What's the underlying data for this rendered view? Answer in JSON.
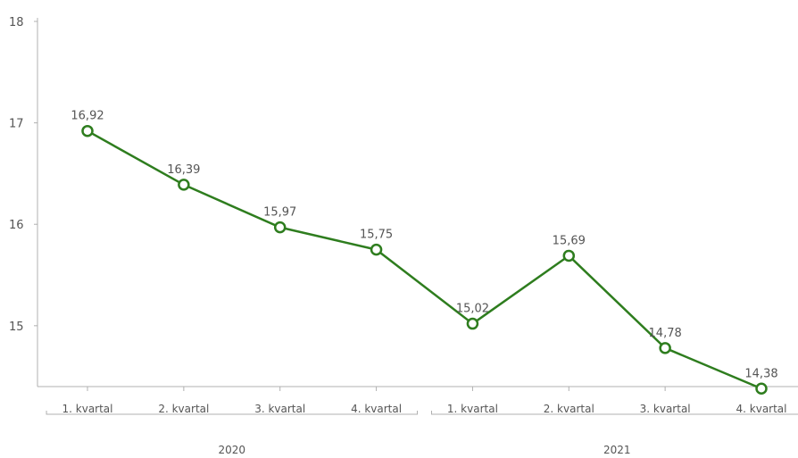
{
  "chart_data": {
    "type": "line",
    "title": "",
    "xlabel": "",
    "ylabel": "",
    "ylim": [
      14.4,
      18
    ],
    "yticks": [
      15,
      16,
      17,
      18
    ],
    "grid": false,
    "legend": "none",
    "colors": {
      "line": "#2e7d1e",
      "marker_fill": "#ffffff",
      "axis": "#b0b0b0",
      "text": "#555555"
    },
    "categories": [
      "1. kvartal",
      "2. kvartal",
      "3. kvartal",
      "4. kvartal",
      "1. kvartal",
      "2. kvartal",
      "3. kvartal",
      "4. kvartal"
    ],
    "groups": [
      {
        "label": "2020",
        "start": 0,
        "end": 3
      },
      {
        "label": "2021",
        "start": 4,
        "end": 7
      }
    ],
    "series": [
      {
        "values": [
          16.92,
          16.39,
          15.97,
          15.75,
          15.02,
          15.69,
          14.78,
          14.38
        ],
        "value_labels": [
          "16,92",
          "16,39",
          "15,97",
          "15,75",
          "15,02",
          "15,69",
          "14,78",
          "14,38"
        ]
      }
    ]
  }
}
